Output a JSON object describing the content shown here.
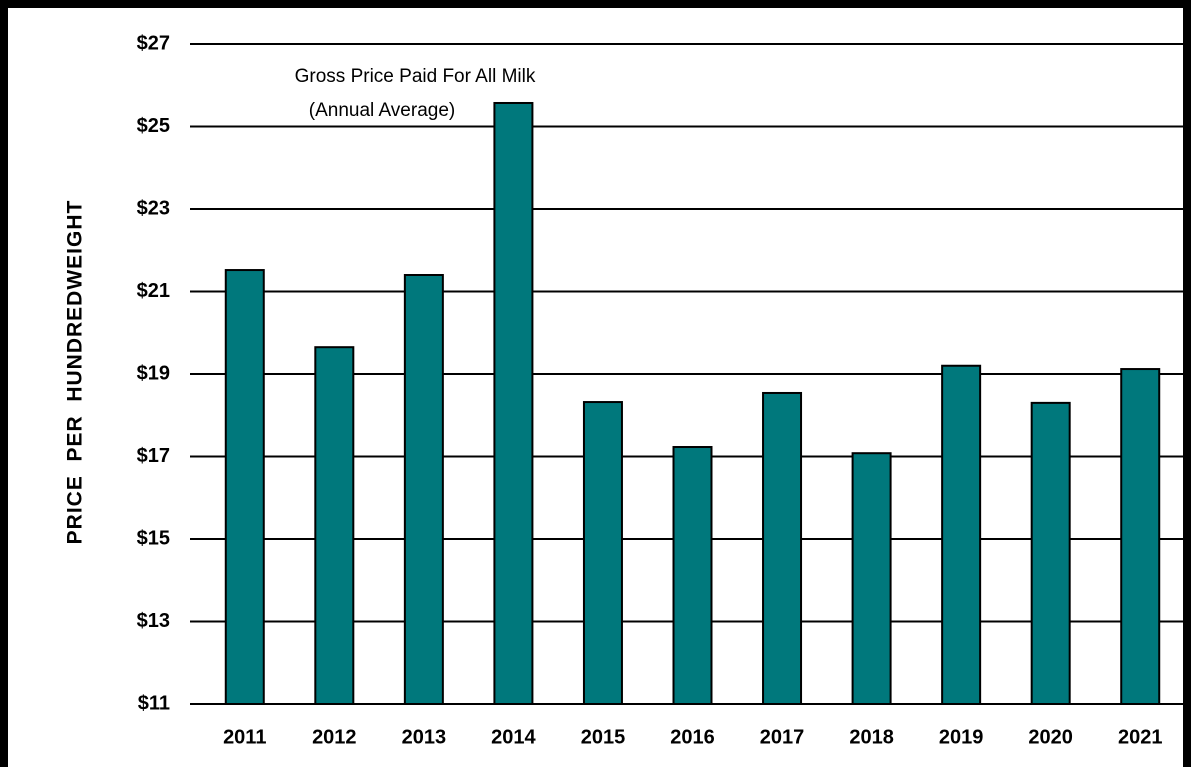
{
  "chart_data": {
    "type": "bar",
    "annotations": [
      "Gross Price Paid For All Milk",
      "(Annual Average)"
    ],
    "y_label": "PRICE  PER  HUNDREDWEIGHT",
    "categories": [
      "2011",
      "2012",
      "2013",
      "2014",
      "2015",
      "2016",
      "2017",
      "2018",
      "2019",
      "2020",
      "2021"
    ],
    "values": [
      21.52,
      19.65,
      21.4,
      25.57,
      18.32,
      17.23,
      18.54,
      17.08,
      19.2,
      18.3,
      19.12
    ],
    "color": "#00787c",
    "ylim": [
      11,
      27
    ],
    "yticks": [
      {
        "value": 11,
        "label": "$11"
      },
      {
        "value": 13,
        "label": "$13"
      },
      {
        "value": 15,
        "label": "$15"
      },
      {
        "value": 17,
        "label": "$17"
      },
      {
        "value": 19,
        "label": "$19"
      },
      {
        "value": 21,
        "label": "$21"
      },
      {
        "value": 23,
        "label": "$23"
      },
      {
        "value": 25,
        "label": "$25"
      },
      {
        "value": 27,
        "label": "$27"
      }
    ],
    "grid": true
  }
}
